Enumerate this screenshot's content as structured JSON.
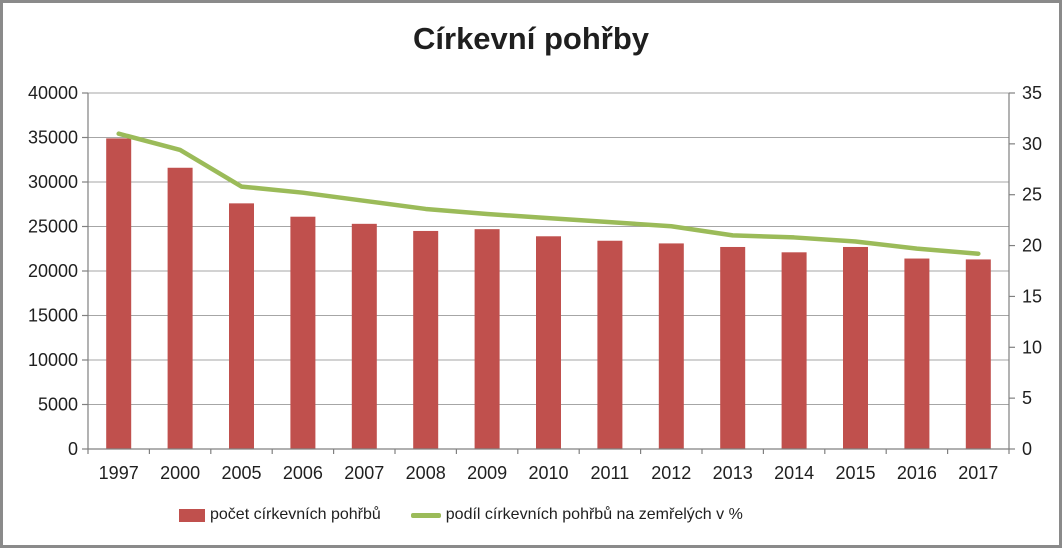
{
  "chart_data": {
    "type": "bar",
    "combo": "bar+line",
    "title": "Církevní pohřby",
    "categories": [
      "1997",
      "2000",
      "2005",
      "2006",
      "2007",
      "2008",
      "2009",
      "2010",
      "2011",
      "2012",
      "2013",
      "2014",
      "2015",
      "2016",
      "2017"
    ],
    "series": [
      {
        "name": "počet církevních pohřbů",
        "type": "bar",
        "axis": "left",
        "color": "#C0504D",
        "values": [
          34900,
          31600,
          27600,
          26100,
          25300,
          24500,
          24700,
          23900,
          23400,
          23100,
          22700,
          22100,
          22700,
          21400,
          21300
        ]
      },
      {
        "name": "podíl církevních pohřbů na zemřelých v %",
        "type": "line",
        "axis": "right",
        "color": "#9BBB59",
        "values": [
          31.0,
          29.4,
          25.8,
          25.2,
          24.4,
          23.6,
          23.1,
          22.7,
          22.3,
          21.9,
          21.0,
          20.8,
          20.4,
          19.7,
          19.2
        ]
      }
    ],
    "left_axis": {
      "min": 0,
      "max": 40000,
      "step": 5000,
      "tick_labels": [
        "0",
        "5000",
        "10000",
        "15000",
        "20000",
        "25000",
        "30000",
        "35000",
        "40000"
      ]
    },
    "right_axis": {
      "min": 0,
      "max": 35,
      "step": 5,
      "tick_labels": [
        "0",
        "5",
        "10",
        "15",
        "20",
        "25",
        "30",
        "35"
      ]
    },
    "grid": true,
    "legend_position": "bottom",
    "xlabel": "",
    "ylabel": ""
  },
  "colors": {
    "bar": "#C0504D",
    "line": "#9BBB59",
    "grid": "#A6A6A6",
    "axis": "#808080",
    "text": "#1f1f1f",
    "frame_border": "#8a8a8a",
    "background": "#ffffff"
  }
}
